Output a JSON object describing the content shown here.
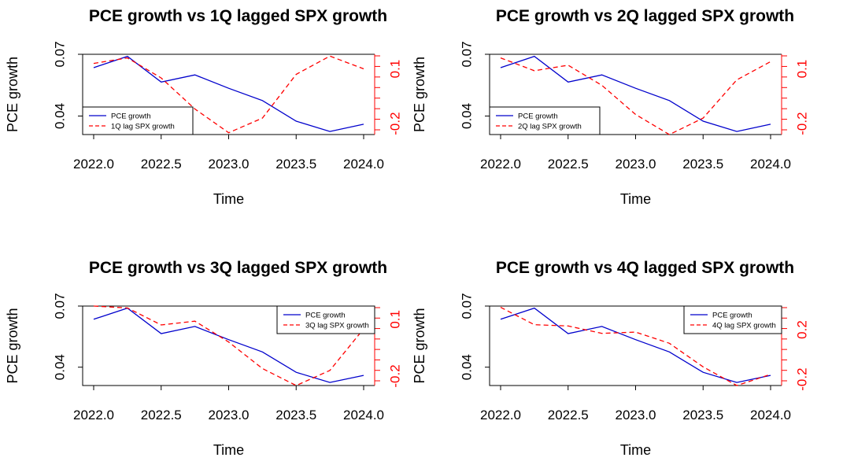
{
  "colors": {
    "pce": "#0000cc",
    "spx": "#ff0000",
    "axis": "#000000"
  },
  "chart_data": [
    {
      "type": "line",
      "title": "PCE growth vs 1Q lagged SPX growth",
      "xlabel": "Time",
      "ylabel": "PCE growth",
      "x": [
        2022.0,
        2022.25,
        2022.5,
        2022.75,
        2023.0,
        2023.25,
        2023.5,
        2023.75,
        2024.0
      ],
      "xticks": [
        "2022.0",
        "2022.5",
        "2023.0",
        "2023.5",
        "2024.0"
      ],
      "xticks_values": [
        2022.0,
        2022.5,
        2023.0,
        2023.5,
        2024.0
      ],
      "ylim": [
        0.031,
        0.07
      ],
      "yticks": [
        "0.04",
        "0.07"
      ],
      "yticks_values": [
        0.04,
        0.07
      ],
      "ylim_right": [
        -0.26,
        0.18
      ],
      "yticks_right": [
        "-0.2",
        "0.1"
      ],
      "yticks_right_values": [
        -0.2,
        0.1
      ],
      "legend_position": "bottom-left",
      "series": [
        {
          "name": "PCE growth",
          "axis": "left",
          "style": "solid",
          "values": [
            0.0635,
            0.069,
            0.0565,
            0.06,
            0.0535,
            0.0475,
            0.0375,
            0.0325,
            0.036
          ]
        },
        {
          "name": "1Q lag SPX growth",
          "axis": "right",
          "style": "dashed",
          "values": [
            0.13,
            0.16,
            0.05,
            -0.12,
            -0.25,
            -0.17,
            0.07,
            0.17,
            0.1
          ]
        }
      ]
    },
    {
      "type": "line",
      "title": "PCE growth vs 2Q lagged SPX growth",
      "xlabel": "Time",
      "ylabel": "PCE growth",
      "x": [
        2022.0,
        2022.25,
        2022.5,
        2022.75,
        2023.0,
        2023.25,
        2023.5,
        2023.75,
        2024.0
      ],
      "xticks": [
        "2022.0",
        "2022.5",
        "2023.0",
        "2023.5",
        "2024.0"
      ],
      "xticks_values": [
        2022.0,
        2022.5,
        2023.0,
        2023.5,
        2024.0
      ],
      "ylim": [
        0.031,
        0.07
      ],
      "yticks": [
        "0.04",
        "0.07"
      ],
      "yticks_values": [
        0.04,
        0.07
      ],
      "ylim_right": [
        -0.26,
        0.18
      ],
      "yticks_right": [
        "-0.2",
        "0.1"
      ],
      "yticks_right_values": [
        -0.2,
        0.1
      ],
      "legend_position": "bottom-left",
      "series": [
        {
          "name": "PCE growth",
          "axis": "left",
          "style": "solid",
          "values": [
            0.0635,
            0.069,
            0.0565,
            0.06,
            0.0535,
            0.0475,
            0.0375,
            0.0325,
            0.036
          ]
        },
        {
          "name": "2Q lag SPX growth",
          "axis": "right",
          "style": "dashed",
          "values": [
            0.16,
            0.09,
            0.12,
            0.01,
            -0.15,
            -0.26,
            -0.17,
            0.04,
            0.14
          ]
        }
      ]
    },
    {
      "type": "line",
      "title": "PCE growth vs 3Q lagged SPX growth",
      "xlabel": "Time",
      "ylabel": "PCE growth",
      "x": [
        2022.0,
        2022.25,
        2022.5,
        2022.75,
        2023.0,
        2023.25,
        2023.5,
        2023.75,
        2024.0
      ],
      "xticks": [
        "2022.0",
        "2022.5",
        "2023.0",
        "2023.5",
        "2024.0"
      ],
      "xticks_values": [
        2022.0,
        2022.5,
        2023.0,
        2023.5,
        2024.0
      ],
      "ylim": [
        0.031,
        0.07
      ],
      "yticks": [
        "0.04",
        "0.07"
      ],
      "yticks_values": [
        0.04,
        0.07
      ],
      "ylim_right": [
        -0.25,
        0.17
      ],
      "yticks_right": [
        "-0.2",
        "0.1"
      ],
      "yticks_right_values": [
        -0.2,
        0.1
      ],
      "legend_position": "top-right",
      "series": [
        {
          "name": "PCE growth",
          "axis": "left",
          "style": "solid",
          "values": [
            0.0635,
            0.069,
            0.0565,
            0.06,
            0.0535,
            0.0475,
            0.0375,
            0.0325,
            0.036
          ]
        },
        {
          "name": "3Q lag SPX growth",
          "axis": "right",
          "style": "dashed",
          "values": [
            0.17,
            0.16,
            0.07,
            0.09,
            -0.02,
            -0.16,
            -0.25,
            -0.17,
            0.05
          ]
        }
      ]
    },
    {
      "type": "line",
      "title": "PCE growth vs 4Q lagged SPX growth",
      "xlabel": "Time",
      "ylabel": "PCE growth",
      "x": [
        2022.0,
        2022.25,
        2022.5,
        2022.75,
        2023.0,
        2023.25,
        2023.5,
        2023.75,
        2024.0
      ],
      "xticks": [
        "2022.0",
        "2022.5",
        "2023.0",
        "2023.5",
        "2024.0"
      ],
      "xticks_values": [
        2022.0,
        2022.5,
        2023.0,
        2023.5,
        2024.0
      ],
      "ylim": [
        0.031,
        0.07
      ],
      "yticks": [
        "0.04",
        "0.07"
      ],
      "yticks_values": [
        0.04,
        0.07
      ],
      "ylim_right": [
        -0.25,
        0.39
      ],
      "yticks_right": [
        "-0.2",
        "0.2"
      ],
      "yticks_right_values": [
        -0.2,
        0.2
      ],
      "legend_position": "top-right",
      "series": [
        {
          "name": "PCE growth",
          "axis": "left",
          "style": "solid",
          "values": [
            0.0635,
            0.069,
            0.0565,
            0.06,
            0.0535,
            0.0475,
            0.0375,
            0.0325,
            0.036
          ]
        },
        {
          "name": "4Q lag SPX growth",
          "axis": "right",
          "style": "dashed",
          "values": [
            0.38,
            0.24,
            0.23,
            0.17,
            0.18,
            0.09,
            -0.1,
            -0.25,
            -0.16
          ]
        }
      ]
    }
  ]
}
